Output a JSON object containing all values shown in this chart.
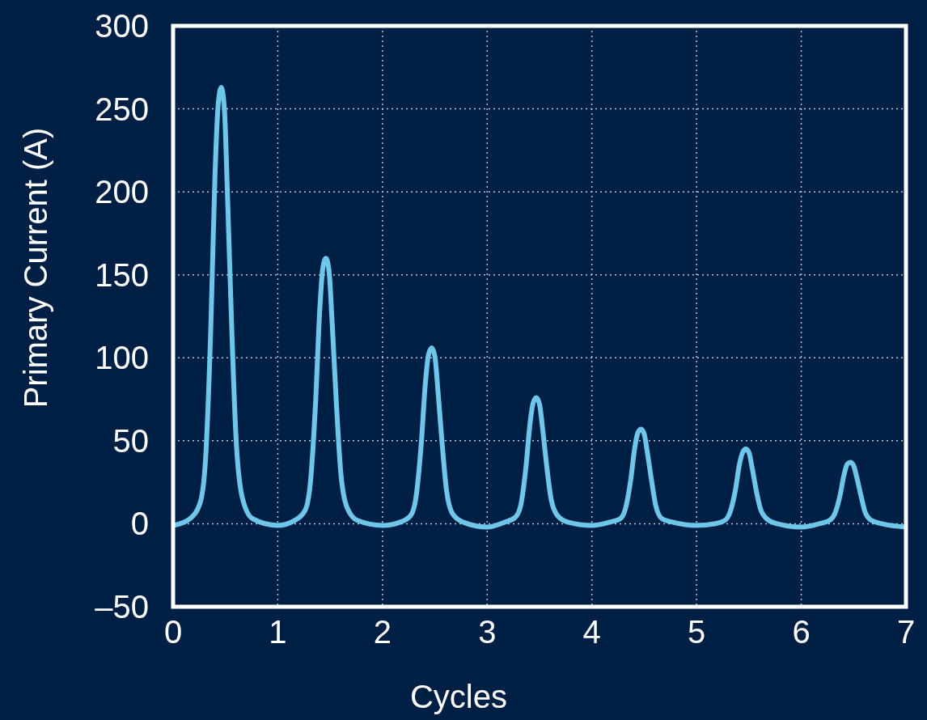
{
  "chart_data": {
    "type": "line",
    "xlabel": "Cycles",
    "ylabel": "Primary Current (A)",
    "xlim": [
      0,
      7
    ],
    "ylim": [
      -50,
      300
    ],
    "xticks": [
      0,
      1,
      2,
      3,
      4,
      5,
      6,
      7
    ],
    "yticks": [
      {
        "value": -50,
        "label": "–50"
      },
      0,
      50,
      100,
      150,
      200,
      250,
      300
    ],
    "grid": true,
    "line_style": "solid",
    "series": [
      {
        "color": "#6ec6ea",
        "x": [
          0,
          0.16,
          0.26,
          0.31,
          0.36,
          0.4,
          0.43,
          0.46,
          0.49,
          0.52,
          0.56,
          0.6,
          0.66,
          0.76,
          1.0,
          1.16,
          1.26,
          1.31,
          1.36,
          1.4,
          1.43,
          1.46,
          1.49,
          1.52,
          1.56,
          1.6,
          1.66,
          1.76,
          2.0,
          2.17,
          2.27,
          2.32,
          2.37,
          2.41,
          2.44,
          2.47,
          2.5,
          2.53,
          2.57,
          2.61,
          2.67,
          2.77,
          3.0,
          3.17,
          3.27,
          3.32,
          3.37,
          3.41,
          3.44,
          3.47,
          3.5,
          3.53,
          3.57,
          3.61,
          3.67,
          3.77,
          4.0,
          4.17,
          4.27,
          4.32,
          4.37,
          4.41,
          4.44,
          4.47,
          4.5,
          4.53,
          4.57,
          4.61,
          4.67,
          4.77,
          5.0,
          5.17,
          5.27,
          5.32,
          5.37,
          5.41,
          5.44,
          5.47,
          5.5,
          5.53,
          5.57,
          5.61,
          5.67,
          5.77,
          6.0,
          6.17,
          6.27,
          6.32,
          6.37,
          6.41,
          6.44,
          6.47,
          6.5,
          6.53,
          6.57,
          6.61,
          6.67,
          6.77,
          7.0
        ],
        "values": [
          -1,
          3,
          13,
          39,
          118,
          210,
          252,
          263,
          250,
          197,
          118,
          53,
          16,
          3,
          -1,
          2,
          8,
          24,
          72,
          128,
          154,
          160,
          152,
          120,
          72,
          32,
          10,
          2,
          -1,
          1,
          5,
          16,
          48,
          85,
          102,
          106,
          101,
          80,
          48,
          21,
          6,
          1,
          -2,
          1,
          4,
          11,
          34,
          61,
          73,
          76,
          72,
          57,
          34,
          15,
          5,
          1,
          -1,
          1,
          3,
          9,
          26,
          46,
          55,
          57,
          54,
          43,
          26,
          11,
          3,
          1,
          -1,
          0,
          2,
          7,
          20,
          36,
          43,
          45,
          43,
          34,
          20,
          9,
          3,
          0,
          -2,
          0,
          2,
          6,
          17,
          30,
          36,
          37,
          35,
          28,
          17,
          7,
          2,
          0,
          -2
        ]
      }
    ]
  }
}
